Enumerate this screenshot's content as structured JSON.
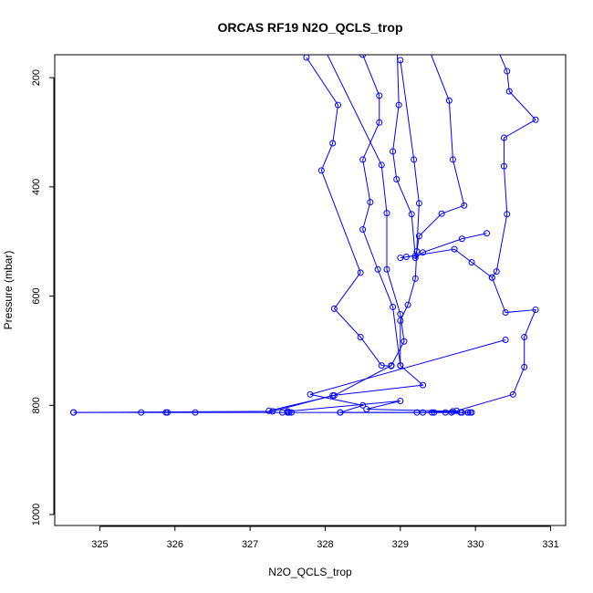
{
  "chart_data": {
    "type": "line",
    "title": "ORCAS RF19 N2O_QCLS_trop",
    "xlabel": "N2O_QCLS_trop",
    "ylabel": "Pressure (mbar)",
    "xlim": [
      324.4,
      331.2
    ],
    "ylim": [
      1020,
      158
    ],
    "y_inverted": true,
    "grid": false,
    "color": "#0000ff",
    "xticks": [
      325,
      326,
      327,
      328,
      329,
      330,
      331
    ],
    "yticks": [
      200,
      400,
      600,
      800,
      1000
    ],
    "series": [
      {
        "values": [
          [
            328.5,
            158
          ],
          [
            328.72,
            233
          ],
          [
            328.72,
            282
          ],
          [
            328.5,
            350
          ],
          [
            328.6,
            428
          ],
          [
            328.5,
            478
          ],
          [
            328.7,
            551
          ],
          [
            328.9,
            620
          ],
          [
            329.0,
            727
          ],
          [
            329.3,
            763
          ],
          [
            328.1,
            782
          ],
          [
            327.3,
            811
          ],
          [
            324.65,
            813
          ]
        ]
      },
      {
        "values": [
          [
            327.75,
            163
          ],
          [
            328.17,
            250
          ],
          [
            328.1,
            320
          ],
          [
            327.95,
            370
          ],
          [
            328.47,
            557
          ],
          [
            328.12,
            623
          ],
          [
            328.47,
            675
          ],
          [
            328.75,
            727
          ],
          [
            328.88,
            728
          ]
        ]
      },
      {
        "values": [
          [
            328.0,
            150
          ],
          [
            328.75,
            360
          ],
          [
            328.82,
            448
          ],
          [
            328.82,
            551
          ],
          [
            329.0,
            633
          ],
          [
            329.05,
            683
          ],
          [
            328.88,
            727
          ],
          [
            328.12,
            782
          ],
          [
            327.25,
            810
          ]
        ]
      },
      {
        "values": [
          [
            328.95,
            115
          ],
          [
            328.98,
            250
          ],
          [
            328.9,
            335
          ],
          [
            328.95,
            386
          ],
          [
            329.15,
            450
          ],
          [
            329.2,
            530
          ],
          [
            329.3,
            520
          ],
          [
            329.82,
            495
          ],
          [
            330.15,
            485
          ]
        ]
      },
      {
        "values": [
          [
            329.0,
            168
          ],
          [
            329.18,
            350
          ],
          [
            329.25,
            430
          ],
          [
            329.2,
            568
          ],
          [
            329.1,
            616
          ],
          [
            329.0,
            645
          ],
          [
            329.0,
            727
          ]
        ]
      },
      {
        "values": [
          [
            329.3,
            120
          ],
          [
            329.65,
            242
          ],
          [
            329.7,
            350
          ],
          [
            329.85,
            434
          ],
          [
            329.55,
            449
          ],
          [
            329.25,
            490
          ],
          [
            329.22,
            518
          ],
          [
            329.2,
            526
          ],
          [
            329.08,
            528
          ]
        ]
      },
      {
        "values": [
          [
            330.3,
            150
          ],
          [
            330.42,
            188
          ],
          [
            330.45,
            225
          ],
          [
            330.8,
            277
          ],
          [
            330.38,
            310
          ],
          [
            330.38,
            362
          ],
          [
            330.42,
            450
          ],
          [
            330.28,
            555
          ],
          [
            330.22,
            566
          ],
          [
            329.95,
            538
          ],
          [
            329.72,
            514
          ],
          [
            329.0,
            530
          ]
        ]
      },
      {
        "values": [
          [
            330.22,
            566
          ],
          [
            330.4,
            630
          ],
          [
            330.8,
            625
          ],
          [
            330.65,
            675
          ],
          [
            330.65,
            730
          ],
          [
            330.5,
            780
          ],
          [
            329.75,
            810
          ],
          [
            329.3,
            813
          ]
        ]
      },
      {
        "values": [
          [
            330.4,
            680
          ],
          [
            327.8,
            780
          ],
          [
            328.5,
            800
          ],
          [
            328.2,
            813
          ],
          [
            329.95,
            813
          ]
        ]
      },
      {
        "values": [
          [
            327.5,
            811
          ],
          [
            329.0,
            792
          ],
          [
            328.55,
            807
          ],
          [
            329.7,
            811
          ],
          [
            329.8,
            813
          ],
          [
            329.9,
            813
          ]
        ]
      }
    ],
    "bottom_points": [
      324.65,
      325.55,
      325.88,
      325.9,
      326.27,
      327.43,
      327.5,
      327.52,
      327.55,
      328.2,
      329.22,
      329.42,
      329.45,
      329.6,
      329.68,
      329.82,
      329.9,
      329.93
    ],
    "bottom_points_y": 813
  }
}
